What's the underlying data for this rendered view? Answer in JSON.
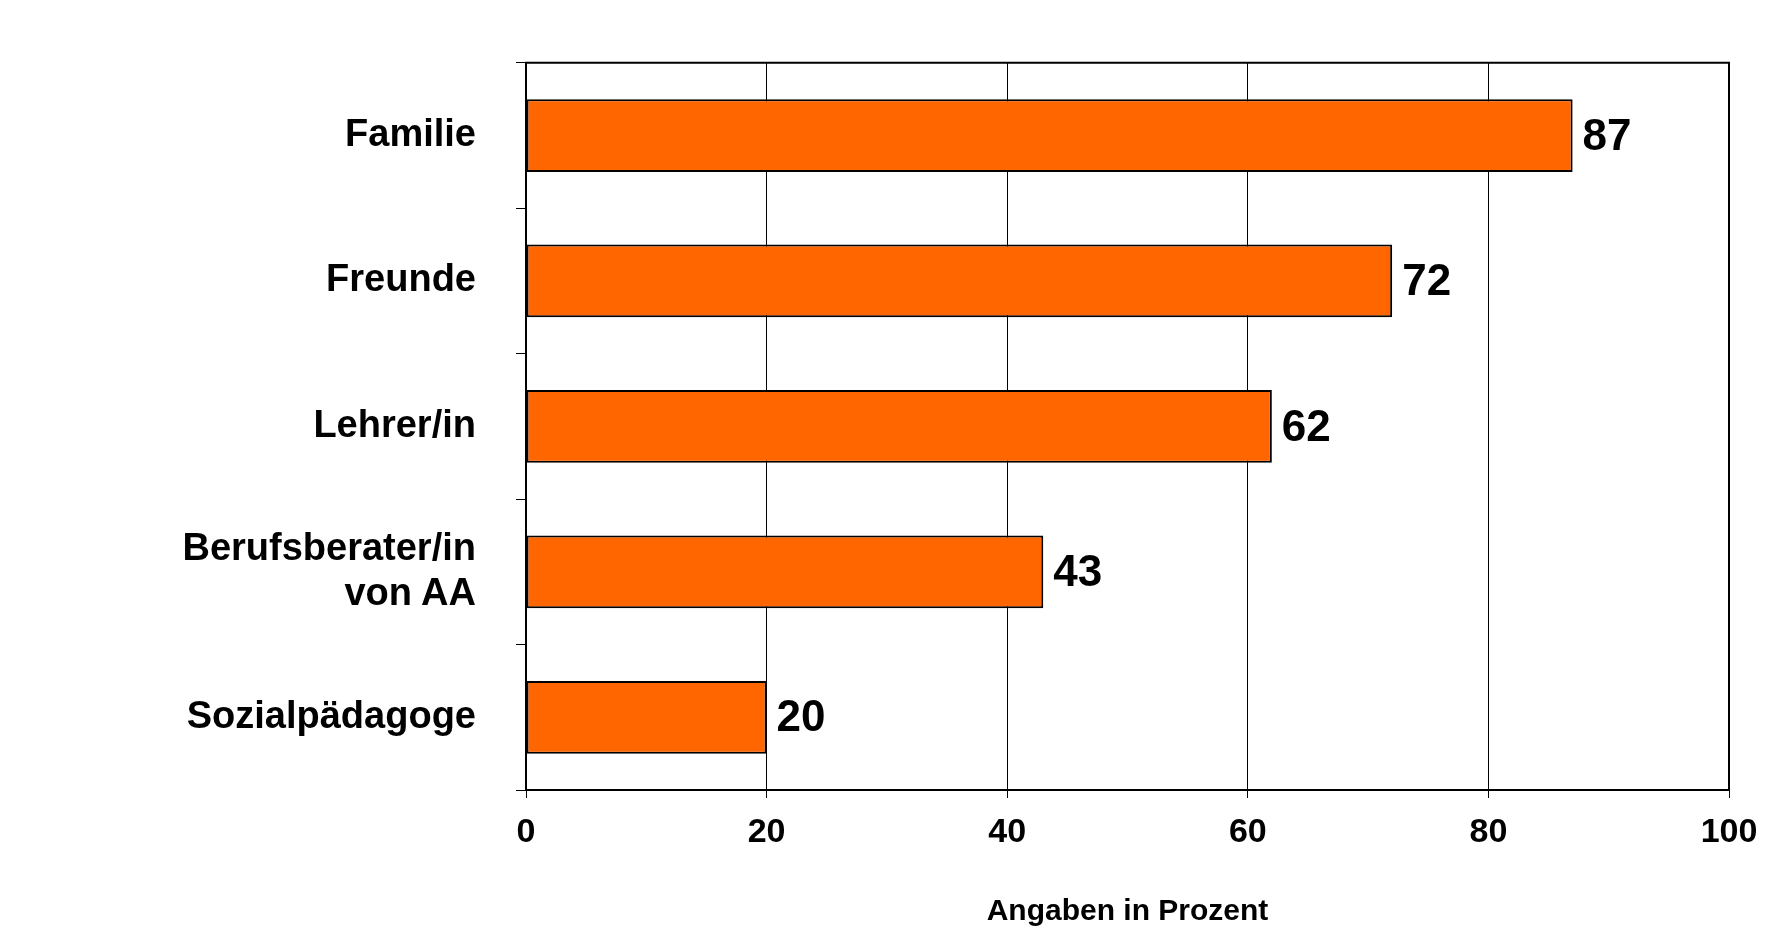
{
  "chart_data": {
    "type": "bar",
    "orientation": "horizontal",
    "xlabel": "Angaben in Prozent",
    "categories": [
      "Familie",
      "Freunde",
      "Lehrer/in",
      "Berufsberater/in von AA",
      "Sozialpädagoge"
    ],
    "values": [
      87,
      72,
      62,
      43,
      20
    ],
    "color": "#ff6600",
    "xlim": [
      0,
      100
    ],
    "xticks": [
      0,
      20,
      40,
      60,
      80,
      100
    ],
    "grid": "x",
    "legend": false,
    "data_labels": true
  }
}
